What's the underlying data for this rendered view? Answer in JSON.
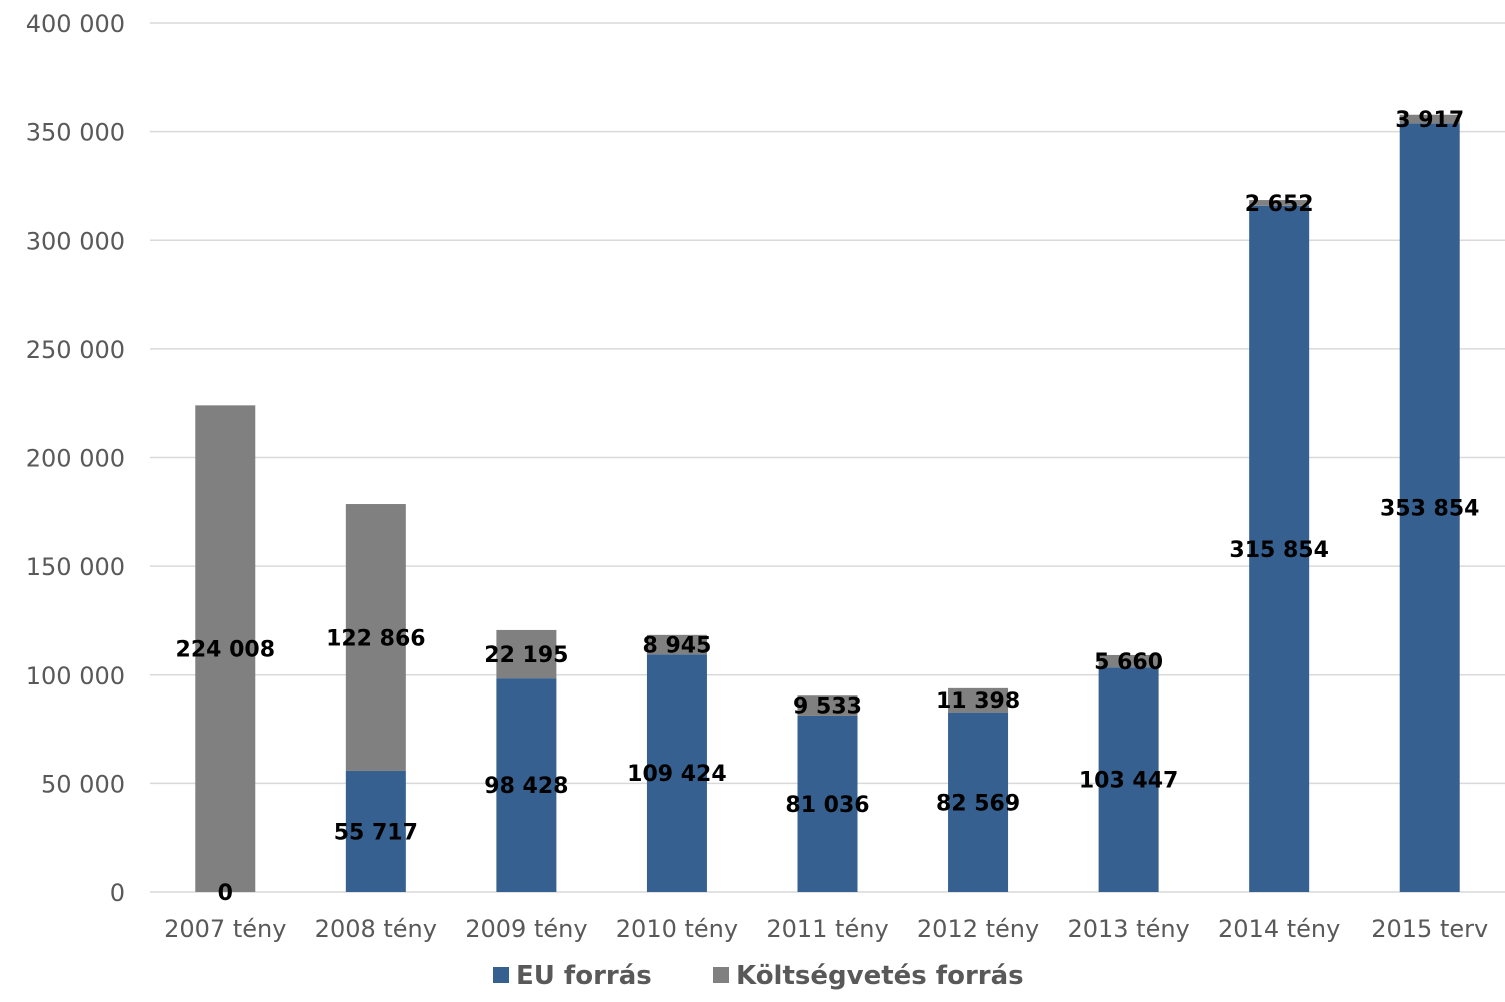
{
  "chart_data": {
    "type": "bar",
    "stacked": true,
    "categories": [
      "2007 tény",
      "2008 tény",
      "2009 tény",
      "2010 tény",
      "2011 tény",
      "2012 tény",
      "2013 tény",
      "2014 tény",
      "2015 terv"
    ],
    "series": [
      {
        "name": "EU forrás",
        "color": "#36608f",
        "values": [
          0,
          55717,
          98428,
          109424,
          81036,
          82569,
          103447,
          315854,
          353854
        ],
        "labels": [
          "0",
          "55 717",
          "98 428",
          "109 424",
          "81 036",
          "82 569",
          "103 447",
          "315 854",
          "353 854"
        ]
      },
      {
        "name": "Költségvetés forrás",
        "color": "#808080",
        "values": [
          224008,
          122866,
          22195,
          8945,
          9533,
          11398,
          5660,
          2652,
          3917
        ],
        "labels": [
          "224 008",
          "122 866",
          "22 195",
          "8 945",
          "9 533",
          "11 398",
          "5 660",
          "2 652",
          "3 917"
        ]
      }
    ],
    "ylim": [
      0,
      400000
    ],
    "yticks": [
      0,
      50000,
      100000,
      150000,
      200000,
      250000,
      300000,
      350000,
      400000
    ],
    "ytick_labels": [
      "0",
      "50 000",
      "100 000",
      "150 000",
      "200 000",
      "250 000",
      "300 000",
      "350 000",
      "400 000"
    ],
    "grid": true,
    "legend_position": "bottom"
  }
}
